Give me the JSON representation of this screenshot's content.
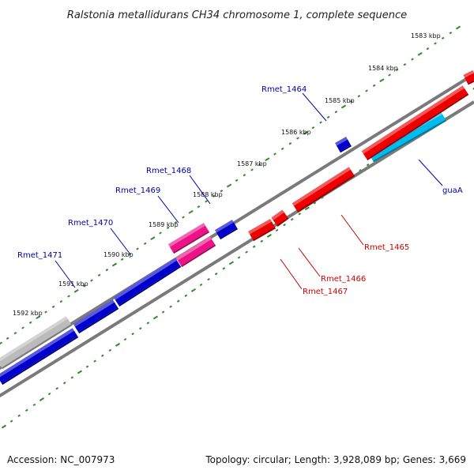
{
  "title": "Ralstonia metallidurans CH34 chromosome 1, complete sequence",
  "footer": {
    "accession": "Accession: NC_007973",
    "summary": "Topology: circular; Length: 3,928,089 bp; Genes: 3,669"
  },
  "colors": {
    "backbone": "#7a7a7a",
    "ticks": "#2e8b2e",
    "forward_label": "#0000aa",
    "reverse_label": "#cc0000"
  },
  "kbp_labels": [
    "1583 kbp",
    "1584 kbp",
    "1585 kbp",
    "1586 kbp",
    "1587 kbp",
    "1588 kbp",
    "1589 kbp",
    "1590 kbp",
    "1591 kbp",
    "1592 kbp"
  ],
  "genes": [
    {
      "name": "Rmet_1464",
      "color": "#0000cc"
    },
    {
      "name": "Rmet_1465",
      "color": "#ee0000"
    },
    {
      "name": "Rmet_1466",
      "color": "#ee0000"
    },
    {
      "name": "Rmet_1467",
      "color": "#ee0000"
    },
    {
      "name": "Rmet_1468",
      "color": "#0000cc"
    },
    {
      "name": "Rmet_1469",
      "color": "#ee1188"
    },
    {
      "name": "Rmet_1470",
      "color": "#0000cc"
    },
    {
      "name": "Rmet_1471",
      "color": "#0000cc"
    },
    {
      "name": "guaA",
      "color": "#00bbee"
    }
  ]
}
